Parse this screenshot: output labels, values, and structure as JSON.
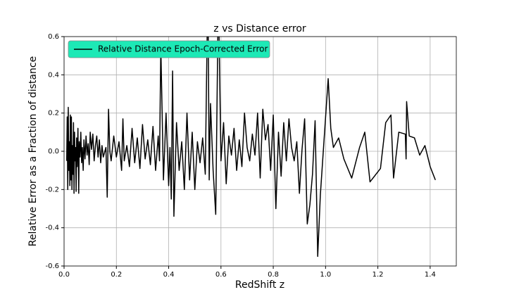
{
  "chart_data": {
    "type": "line",
    "title": "z vs Distance error",
    "xlabel": "RedShift z",
    "ylabel": "Relative Error as a Fraction of distance",
    "xlim": [
      0,
      1.5
    ],
    "ylim": [
      -0.6,
      0.6
    ],
    "xticks": [
      {
        "value": 0,
        "label": "0.0"
      },
      0.2,
      0.4,
      0.6,
      0.8,
      {
        "value": 1,
        "label": "1.0"
      },
      1.2,
      1.4
    ],
    "yticks": [
      -0.6,
      -0.4,
      -0.2,
      {
        "value": 0,
        "label": "0.0"
      },
      0.2,
      0.4,
      0.6
    ],
    "grid": true,
    "legend_loc": "upper left",
    "legend_facecolor": "#1de9b6",
    "series": [
      {
        "name": "Relative Distance Epoch-Corrected Error",
        "color": "#000000",
        "x": [
          0.01,
          0.012,
          0.014,
          0.016,
          0.018,
          0.02,
          0.022,
          0.024,
          0.026,
          0.028,
          0.03,
          0.032,
          0.034,
          0.036,
          0.038,
          0.04,
          0.042,
          0.044,
          0.046,
          0.048,
          0.05,
          0.053,
          0.056,
          0.058,
          0.061,
          0.064,
          0.067,
          0.07,
          0.073,
          0.076,
          0.08,
          0.084,
          0.088,
          0.092,
          0.096,
          0.1,
          0.105,
          0.11,
          0.115,
          0.12,
          0.125,
          0.13,
          0.135,
          0.14,
          0.145,
          0.15,
          0.16,
          0.165,
          0.17,
          0.175,
          0.18,
          0.19,
          0.2,
          0.21,
          0.22,
          0.225,
          0.23,
          0.24,
          0.25,
          0.26,
          0.27,
          0.28,
          0.29,
          0.3,
          0.31,
          0.32,
          0.33,
          0.34,
          0.35,
          0.36,
          0.365,
          0.37,
          0.375,
          0.38,
          0.39,
          0.4,
          0.405,
          0.41,
          0.415,
          0.42,
          0.43,
          0.44,
          0.45,
          0.46,
          0.47,
          0.48,
          0.49,
          0.5,
          0.51,
          0.52,
          0.53,
          0.54,
          0.55,
          0.555,
          0.56,
          0.57,
          0.58,
          0.59,
          0.6,
          0.61,
          0.62,
          0.63,
          0.64,
          0.65,
          0.66,
          0.67,
          0.68,
          0.69,
          0.7,
          0.71,
          0.72,
          0.73,
          0.74,
          0.75,
          0.76,
          0.77,
          0.78,
          0.79,
          0.8,
          0.81,
          0.82,
          0.83,
          0.84,
          0.85,
          0.86,
          0.87,
          0.88,
          0.89,
          0.9,
          0.91,
          0.92,
          0.93,
          0.94,
          0.95,
          0.96,
          0.97,
          0.98,
          1.01,
          1.02,
          1.03,
          1.05,
          1.07,
          1.1,
          1.13,
          1.15,
          1.17,
          1.21,
          1.23,
          1.25,
          1.26,
          1.28,
          1.305,
          1.308,
          1.31,
          1.32,
          1.34,
          1.36,
          1.38,
          1.4,
          1.42
        ],
        "values": [
          -0.05,
          0.18,
          -0.2,
          0.23,
          -0.1,
          0.05,
          -0.18,
          0.19,
          -0.15,
          0.18,
          -0.2,
          0.03,
          -0.12,
          0.15,
          -0.22,
          0.1,
          -0.05,
          0.02,
          -0.21,
          0.07,
          -0.08,
          0.12,
          -0.22,
          0.05,
          -0.03,
          0.1,
          -0.06,
          0.02,
          -0.1,
          0.06,
          -0.04,
          0.08,
          -0.02,
          0.04,
          -0.07,
          0.1,
          0.01,
          0.09,
          -0.05,
          0.03,
          0.08,
          -0.03,
          0.06,
          -0.06,
          0.03,
          -0.03,
          0.02,
          -0.24,
          0.22,
          0.0,
          -0.05,
          0.08,
          -0.03,
          0.05,
          -0.1,
          0.17,
          -0.05,
          0.03,
          -0.08,
          0.12,
          -0.06,
          0.07,
          -0.09,
          0.14,
          -0.04,
          0.06,
          -0.07,
          0.13,
          -0.1,
          0.08,
          -0.05,
          0.55,
          0.2,
          -0.15,
          0.2,
          -0.18,
          0.02,
          -0.25,
          0.42,
          -0.34,
          0.15,
          -0.1,
          0.05,
          -0.2,
          0.2,
          -0.15,
          0.1,
          -0.2,
          0.05,
          -0.06,
          0.07,
          -0.12,
          0.9,
          -0.15,
          0.25,
          -0.1,
          -0.33,
          0.85,
          -0.05,
          0.15,
          -0.17,
          0.08,
          -0.02,
          0.12,
          -0.1,
          0.06,
          -0.08,
          0.2,
          0.02,
          -0.05,
          0.09,
          -0.02,
          0.2,
          -0.14,
          0.22,
          0.06,
          0.14,
          -0.1,
          0.19,
          -0.3,
          0.1,
          -0.13,
          0.15,
          -0.05,
          0.17,
          0.02,
          -0.05,
          0.05,
          -0.22,
          0.01,
          0.17,
          -0.38,
          -0.28,
          -0.12,
          0.16,
          -0.55,
          -0.23,
          0.38,
          0.12,
          0.02,
          0.07,
          -0.04,
          -0.14,
          0.02,
          0.1,
          -0.16,
          -0.09,
          0.15,
          0.19,
          -0.14,
          0.1,
          0.09,
          -0.04,
          0.26,
          0.08,
          0.07,
          -0.02,
          0.03,
          -0.08,
          -0.15
        ]
      }
    ]
  }
}
